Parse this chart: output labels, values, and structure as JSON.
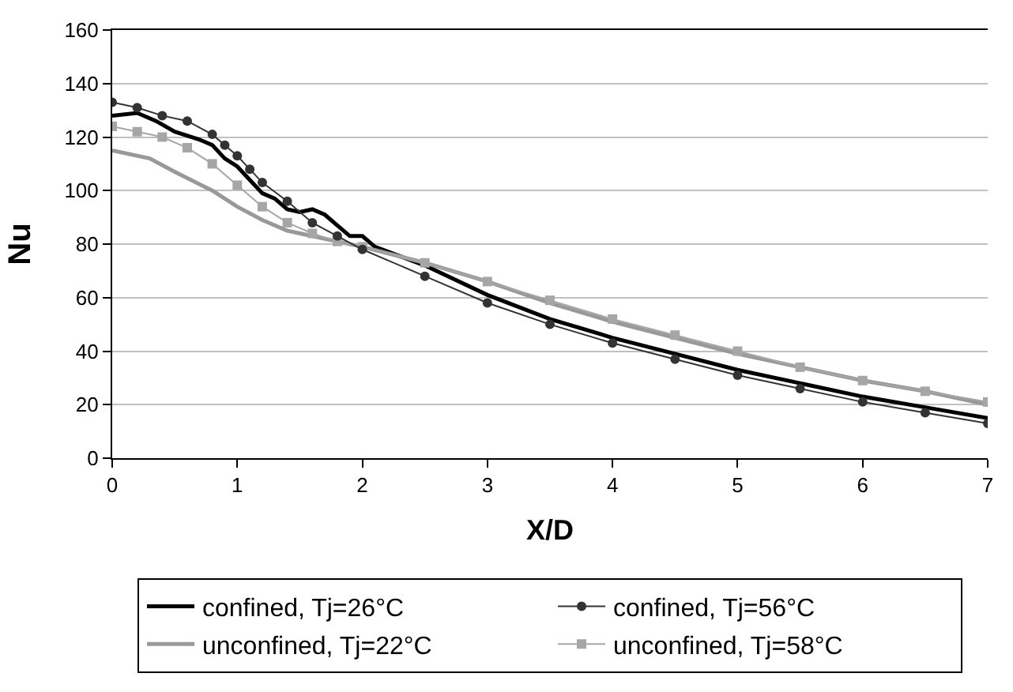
{
  "chart_data": {
    "type": "line",
    "xlabel": "X/D",
    "ylabel": "Nu",
    "xlim": [
      0,
      7
    ],
    "xticks": [
      0,
      1,
      2,
      3,
      4,
      5,
      6,
      7
    ],
    "ylim": [
      0,
      160
    ],
    "yticks": [
      0,
      20,
      40,
      60,
      80,
      100,
      120,
      140,
      160
    ],
    "grid": "y",
    "legend": "bottom",
    "series": [
      {
        "name": "confined, Tj=26°C",
        "color": "#000000",
        "marker": "none",
        "x": [
          0,
          0.2,
          0.35,
          0.5,
          0.7,
          0.8,
          0.9,
          1.0,
          1.1,
          1.2,
          1.3,
          1.4,
          1.5,
          1.6,
          1.7,
          1.8,
          1.9,
          2.0,
          2.1,
          2.5,
          3,
          3.5,
          4,
          4.5,
          5,
          5.5,
          6,
          6.5,
          7
        ],
        "values": [
          128,
          129,
          126,
          122,
          119,
          117,
          112,
          109,
          104,
          99,
          97,
          93,
          92,
          93,
          91,
          87,
          83,
          83,
          79,
          72,
          61,
          52,
          45,
          39,
          33,
          28,
          23,
          19,
          15
        ]
      },
      {
        "name": "confined, Tj=56°C",
        "color": "#333333",
        "marker": "circle",
        "x": [
          0,
          0.2,
          0.4,
          0.6,
          0.8,
          0.9,
          1.0,
          1.1,
          1.2,
          1.4,
          1.6,
          1.8,
          2.0,
          2.5,
          3,
          3.5,
          4,
          4.5,
          5,
          5.5,
          6,
          6.5,
          7
        ],
        "values": [
          133,
          131,
          128,
          126,
          121,
          117,
          113,
          108,
          103,
          96,
          88,
          83,
          78,
          68,
          58,
          50,
          43,
          37,
          31,
          26,
          21,
          17,
          13
        ]
      },
      {
        "name": "unconfined, Tj=22°C",
        "color": "#999999",
        "marker": "none",
        "x": [
          0,
          0.3,
          0.5,
          0.8,
          1.0,
          1.2,
          1.4,
          1.7,
          2.0,
          2.5,
          3,
          3.5,
          4,
          4.5,
          5,
          5.5,
          6,
          6.5,
          7
        ],
        "values": [
          115,
          112,
          107,
          100,
          94,
          89,
          85,
          82,
          79,
          73,
          66,
          58,
          51,
          45,
          39,
          34,
          29,
          25,
          20
        ]
      },
      {
        "name": "unconfined, Tj=58°C",
        "color": "#a6a6a6",
        "marker": "square",
        "x": [
          0,
          0.2,
          0.4,
          0.6,
          0.8,
          1.0,
          1.2,
          1.4,
          1.6,
          1.8,
          2.0,
          2.5,
          3,
          3.5,
          4,
          4.5,
          5,
          5.5,
          6,
          6.5,
          7
        ],
        "values": [
          124,
          122,
          120,
          116,
          110,
          102,
          94,
          88,
          84,
          81,
          79,
          73,
          66,
          59,
          52,
          46,
          40,
          34,
          29,
          25,
          21
        ]
      }
    ]
  }
}
